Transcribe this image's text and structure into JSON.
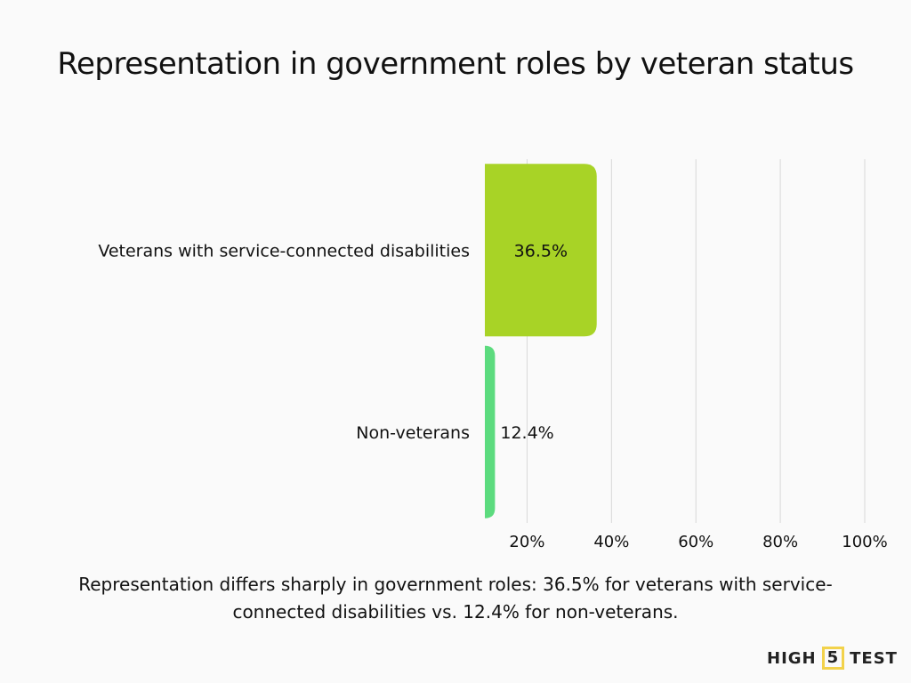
{
  "chart_data": {
    "type": "bar",
    "orientation": "horizontal",
    "title": "Representation in government roles by veteran status",
    "categories": [
      "Veterans with service-connected disabilities",
      "Non-veterans"
    ],
    "values": [
      36.5,
      12.4
    ],
    "data_labels": [
      "36.5%",
      "12.4%"
    ],
    "colors": [
      "#a8d326",
      "#5cdb7e"
    ],
    "xlim": [
      10,
      100
    ],
    "x_ticks": [
      20,
      40,
      60,
      80,
      100
    ],
    "x_tick_labels": [
      "20%",
      "40%",
      "60%",
      "80%",
      "100%"
    ],
    "grid": true,
    "xlabel": "",
    "ylabel": ""
  },
  "caption": "Representation differs sharply in government roles: 36.5% for veterans with service-connected disabilities vs. 12.4% for non-veterans.",
  "logo": {
    "left": "HIGH",
    "mid": "5",
    "right": "TEST"
  }
}
